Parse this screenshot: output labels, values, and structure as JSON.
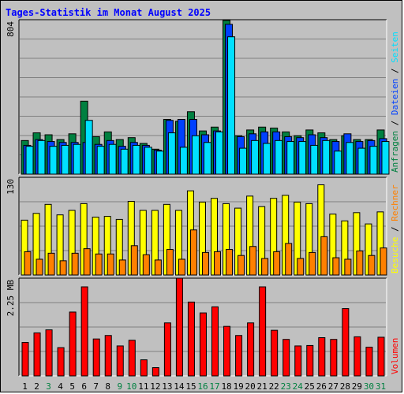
{
  "title": "Tages-Statistik im Monat August 2025",
  "colors": {
    "anfragen": "#008040",
    "dateien": "#0040ff",
    "seiten": "#00e0ff",
    "besuche": "#ffff00",
    "rechner": "#ff8000",
    "volumen": "#ff0000",
    "weekday_label": "#000000",
    "weekend_label": "#008040",
    "plot_bg": "#c0c0c0"
  },
  "chart_data": [
    {
      "type": "bar",
      "panel": "top",
      "ymax_label": "804",
      "ylim": [
        0,
        804
      ],
      "right_label": {
        "parts": [
          {
            "text": "Anfragen",
            "color": "#008040"
          },
          {
            "text": " / ",
            "color": "#000000"
          },
          {
            "text": "Dateien",
            "color": "#0040ff"
          },
          {
            "text": " / ",
            "color": "#000000"
          },
          {
            "text": "Seiten",
            "color": "#00e0ff"
          }
        ]
      },
      "categories": [
        "1",
        "2",
        "3",
        "4",
        "5",
        "6",
        "7",
        "8",
        "9",
        "10",
        "11",
        "12",
        "13",
        "14",
        "15",
        "16",
        "17",
        "18",
        "19",
        "20",
        "21",
        "22",
        "23",
        "24",
        "25",
        "26",
        "27",
        "28",
        "29",
        "30",
        "31"
      ],
      "series": [
        {
          "name": "Anfragen",
          "values": [
            175,
            215,
            205,
            180,
            210,
            380,
            195,
            220,
            180,
            190,
            160,
            130,
            285,
            275,
            325,
            225,
            245,
            800,
            200,
            230,
            245,
            240,
            220,
            200,
            230,
            215,
            180,
            200,
            180,
            180,
            230
          ]
        },
        {
          "name": "Dateien",
          "values": [
            150,
            180,
            170,
            165,
            165,
            165,
            155,
            175,
            145,
            165,
            150,
            125,
            280,
            285,
            285,
            205,
            225,
            780,
            195,
            210,
            220,
            220,
            195,
            190,
            205,
            190,
            170,
            210,
            170,
            175,
            185
          ]
        },
        {
          "name": "Seiten",
          "values": [
            145,
            175,
            145,
            150,
            155,
            280,
            145,
            155,
            130,
            150,
            140,
            120,
            215,
            140,
            200,
            165,
            220,
            715,
            135,
            175,
            160,
            175,
            170,
            170,
            150,
            175,
            120,
            165,
            135,
            145,
            170
          ]
        }
      ]
    },
    {
      "type": "bar",
      "panel": "middle",
      "ymax_label": "130",
      "ylim": [
        0,
        130
      ],
      "right_label": {
        "parts": [
          {
            "text": "Besuche",
            "color": "#ffff00"
          },
          {
            "text": " / ",
            "color": "#000000"
          },
          {
            "text": "Rechner",
            "color": "#ff8000"
          }
        ]
      },
      "categories": [
        "1",
        "2",
        "3",
        "4",
        "5",
        "6",
        "7",
        "8",
        "9",
        "10",
        "11",
        "12",
        "13",
        "14",
        "15",
        "16",
        "17",
        "18",
        "19",
        "20",
        "21",
        "22",
        "23",
        "24",
        "25",
        "26",
        "27",
        "28",
        "29",
        "30",
        "31"
      ],
      "series": [
        {
          "name": "Besuche",
          "values": [
            73,
            82,
            94,
            80,
            86,
            95,
            77,
            78,
            74,
            98,
            86,
            86,
            94,
            86,
            112,
            97,
            102,
            95,
            89,
            105,
            91,
            102,
            106,
            97,
            95,
            120,
            81,
            72,
            83,
            68,
            84
          ]
        },
        {
          "name": "Rechner",
          "values": [
            31,
            21,
            29,
            19,
            29,
            35,
            28,
            28,
            20,
            39,
            27,
            20,
            34,
            21,
            60,
            30,
            31,
            34,
            26,
            38,
            22,
            31,
            42,
            22,
            30,
            51,
            23,
            21,
            32,
            26,
            36
          ]
        }
      ]
    },
    {
      "type": "bar",
      "panel": "bottom",
      "ymax_label": "2.25 MB",
      "ylim": [
        0,
        2.25
      ],
      "right_label": {
        "parts": [
          {
            "text": "Volumen",
            "color": "#ff0000"
          }
        ]
      },
      "categories": [
        "1",
        "2",
        "3",
        "4",
        "5",
        "6",
        "7",
        "8",
        "9",
        "10",
        "11",
        "12",
        "13",
        "14",
        "15",
        "16",
        "17",
        "18",
        "19",
        "20",
        "21",
        "22",
        "23",
        "24",
        "25",
        "26",
        "27",
        "28",
        "29",
        "30",
        "31"
      ],
      "series": [
        {
          "name": "Volumen",
          "values": [
            0.77,
            0.99,
            1.06,
            0.65,
            1.47,
            2.05,
            0.85,
            0.93,
            0.69,
            0.82,
            0.37,
            0.19,
            1.22,
            2.25,
            1.7,
            1.45,
            1.59,
            1.14,
            0.93,
            1.22,
            2.05,
            1.05,
            0.84,
            0.69,
            0.7,
            0.88,
            0.84,
            1.55,
            0.9,
            0.66,
            0.89
          ]
        }
      ]
    }
  ],
  "x_labels": [
    {
      "text": "1",
      "weekend": false
    },
    {
      "text": "2",
      "weekend": false
    },
    {
      "text": "3",
      "weekend": true
    },
    {
      "text": "4",
      "weekend": false
    },
    {
      "text": "5",
      "weekend": false
    },
    {
      "text": "6",
      "weekend": false
    },
    {
      "text": "7",
      "weekend": false
    },
    {
      "text": "8",
      "weekend": false
    },
    {
      "text": "9",
      "weekend": true
    },
    {
      "text": "10",
      "weekend": true
    },
    {
      "text": "11",
      "weekend": false
    },
    {
      "text": "12",
      "weekend": false
    },
    {
      "text": "13",
      "weekend": false
    },
    {
      "text": "14",
      "weekend": false
    },
    {
      "text": "15",
      "weekend": false
    },
    {
      "text": "16",
      "weekend": true
    },
    {
      "text": "17",
      "weekend": true
    },
    {
      "text": "18",
      "weekend": false
    },
    {
      "text": "19",
      "weekend": false
    },
    {
      "text": "20",
      "weekend": false
    },
    {
      "text": "21",
      "weekend": false
    },
    {
      "text": "22",
      "weekend": false
    },
    {
      "text": "23",
      "weekend": true
    },
    {
      "text": "24",
      "weekend": true
    },
    {
      "text": "25",
      "weekend": false
    },
    {
      "text": "26",
      "weekend": false
    },
    {
      "text": "27",
      "weekend": false
    },
    {
      "text": "28",
      "weekend": false
    },
    {
      "text": "29",
      "weekend": false
    },
    {
      "text": "30",
      "weekend": true
    },
    {
      "text": "31",
      "weekend": true
    }
  ]
}
